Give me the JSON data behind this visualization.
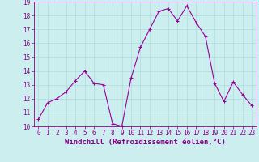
{
  "x": [
    0,
    1,
    2,
    3,
    4,
    5,
    6,
    7,
    8,
    9,
    10,
    11,
    12,
    13,
    14,
    15,
    16,
    17,
    18,
    19,
    20,
    21,
    22,
    23
  ],
  "y": [
    10.5,
    11.7,
    12.0,
    12.5,
    13.3,
    14.0,
    13.1,
    13.0,
    10.2,
    10.0,
    13.5,
    15.7,
    17.0,
    18.3,
    18.5,
    17.6,
    18.7,
    17.5,
    16.5,
    13.1,
    11.8,
    13.2,
    12.3,
    11.5
  ],
  "line_color": "#990099",
  "marker": "+",
  "marker_size": 3,
  "bg_color": "#cceeee",
  "grid_color": "#aadddd",
  "ylim": [
    10,
    19
  ],
  "xlim": [
    -0.5,
    23.5
  ],
  "yticks": [
    10,
    11,
    12,
    13,
    14,
    15,
    16,
    17,
    18,
    19
  ],
  "xticks": [
    0,
    1,
    2,
    3,
    4,
    5,
    6,
    7,
    8,
    9,
    10,
    11,
    12,
    13,
    14,
    15,
    16,
    17,
    18,
    19,
    20,
    21,
    22,
    23
  ],
  "xlabel": "Windchill (Refroidissement éolien,°C)",
  "tick_color": "#880088",
  "axis_label_color": "#880088",
  "tick_fontsize": 5.5,
  "xlabel_fontsize": 6.5,
  "linewidth": 0.8,
  "markeredgewidth": 0.8
}
